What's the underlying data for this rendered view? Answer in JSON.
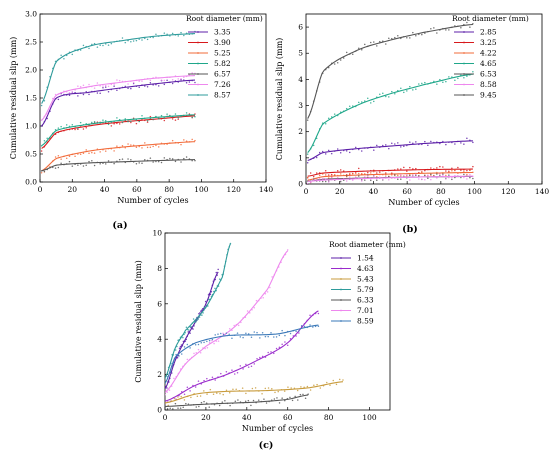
{
  "chart_data": [
    {
      "panel_id": "a",
      "type": "scatter",
      "panel_label": "(a)",
      "xlabel": "Number of cycles",
      "ylabel": "Cumulative residual slip (mm)",
      "xlim": [
        0,
        140
      ],
      "ylim": [
        0,
        3.0
      ],
      "xticks": [
        0,
        20,
        40,
        60,
        80,
        100,
        120,
        140
      ],
      "yticks": [
        0.0,
        0.5,
        1.0,
        1.5,
        2.0,
        2.5,
        3.0
      ],
      "ytick_labels": [
        "0.0",
        "0.5",
        "1.0",
        "1.5",
        "2.0",
        "2.5",
        "3.0"
      ],
      "legend_title": "Root diameter (mm)",
      "legend_position": "top-right",
      "series": [
        {
          "name": "3.35",
          "color": "#5c1fa8",
          "x": [
            1,
            10,
            30,
            50,
            70,
            96
          ],
          "y": [
            1.0,
            1.5,
            1.6,
            1.68,
            1.75,
            1.82
          ]
        },
        {
          "name": "3.90",
          "color": "#d7191c",
          "x": [
            1,
            10,
            30,
            50,
            70,
            96
          ],
          "y": [
            0.6,
            0.88,
            1.0,
            1.07,
            1.12,
            1.18
          ]
        },
        {
          "name": "5.25",
          "color": "#f26b3a",
          "x": [
            1,
            10,
            30,
            50,
            70,
            96
          ],
          "y": [
            0.2,
            0.42,
            0.55,
            0.62,
            0.67,
            0.72
          ]
        },
        {
          "name": "5.82",
          "color": "#1fa78a",
          "x": [
            1,
            10,
            30,
            50,
            70,
            96
          ],
          "y": [
            0.65,
            0.92,
            1.03,
            1.1,
            1.15,
            1.2
          ]
        },
        {
          "name": "6.57",
          "color": "#555555",
          "x": [
            1,
            10,
            30,
            50,
            70,
            96
          ],
          "y": [
            0.2,
            0.3,
            0.34,
            0.36,
            0.38,
            0.4
          ]
        },
        {
          "name": "7.26",
          "color": "#ee88ee",
          "x": [
            1,
            10,
            30,
            50,
            70,
            96
          ],
          "y": [
            1.1,
            1.55,
            1.7,
            1.78,
            1.85,
            1.9
          ]
        },
        {
          "name": "8.57",
          "color": "#2e9b9b",
          "x": [
            1,
            10,
            30,
            50,
            70,
            96
          ],
          "y": [
            1.4,
            2.15,
            2.42,
            2.52,
            2.6,
            2.65
          ]
        }
      ]
    },
    {
      "panel_id": "b",
      "type": "scatter",
      "panel_label": "(b)",
      "xlabel": "Number of cycles",
      "ylabel": "Cumulative residual slip (mm)",
      "xlim": [
        0,
        140
      ],
      "ylim": [
        0,
        6.5
      ],
      "xticks": [
        0,
        20,
        40,
        60,
        80,
        100,
        120,
        140
      ],
      "yticks": [
        0,
        1,
        2,
        3,
        4,
        5,
        6
      ],
      "ytick_labels": [
        "0",
        "1",
        "2",
        "3",
        "4",
        "5",
        "6"
      ],
      "legend_title": "Root diameter (mm)",
      "legend_position": "top-right",
      "series": [
        {
          "name": "2.85",
          "color": "#5c1fa8",
          "x": [
            1,
            10,
            30,
            50,
            70,
            99
          ],
          "y": [
            0.9,
            1.2,
            1.35,
            1.45,
            1.55,
            1.65
          ]
        },
        {
          "name": "3.25",
          "color": "#d7191c",
          "x": [
            1,
            10,
            30,
            50,
            70,
            99
          ],
          "y": [
            0.3,
            0.42,
            0.48,
            0.52,
            0.55,
            0.57
          ]
        },
        {
          "name": "4.22",
          "color": "#f26b3a",
          "x": [
            1,
            10,
            30,
            50,
            70,
            99
          ],
          "y": [
            0.15,
            0.28,
            0.34,
            0.38,
            0.41,
            0.44
          ]
        },
        {
          "name": "4.65",
          "color": "#1fa78a",
          "x": [
            1,
            10,
            30,
            50,
            70,
            99
          ],
          "y": [
            1.2,
            2.3,
            3.0,
            3.45,
            3.8,
            4.2
          ]
        },
        {
          "name": "6.53",
          "color": "#555555",
          "x": [
            1,
            10,
            30,
            50,
            70,
            99
          ],
          "y": [
            0.1,
            0.18,
            0.22,
            0.25,
            0.27,
            0.29
          ]
        },
        {
          "name": "8.58",
          "color": "#ee88ee",
          "x": [
            1,
            10,
            30,
            50,
            70,
            99
          ],
          "y": [
            0.1,
            0.15,
            0.2,
            0.24,
            0.27,
            0.3
          ]
        },
        {
          "name": "9.45",
          "color": "#555555",
          "x": [
            1,
            10,
            30,
            50,
            70,
            99
          ],
          "y": [
            2.5,
            4.3,
            5.1,
            5.5,
            5.8,
            6.1
          ]
        }
      ]
    },
    {
      "panel_id": "c",
      "type": "scatter",
      "panel_label": "(c)",
      "xlabel": "Number of cycles",
      "ylabel": "Cumulative residual slip (mm)",
      "xlim": [
        0,
        110
      ],
      "ylim": [
        0,
        10
      ],
      "xticks": [
        0,
        20,
        40,
        60,
        80,
        100
      ],
      "yticks": [
        0,
        2,
        4,
        6,
        8,
        10
      ],
      "ytick_labels": [
        "0",
        "2",
        "4",
        "6",
        "8",
        "10"
      ],
      "legend_title": "Root diameter (mm)",
      "legend_position": "top-right",
      "series": [
        {
          "name": "1.54",
          "color": "#5c1fa8",
          "x": [
            0,
            5,
            10,
            15,
            20,
            26
          ],
          "y": [
            1.2,
            2.8,
            4.0,
            5.0,
            6.0,
            7.8
          ]
        },
        {
          "name": "4.63",
          "color": "#9a2bcc",
          "x": [
            0,
            15,
            30,
            45,
            60,
            75
          ],
          "y": [
            0.5,
            1.4,
            2.0,
            2.8,
            3.8,
            5.6
          ]
        },
        {
          "name": "5.43",
          "color": "#c89b3c",
          "x": [
            0,
            15,
            30,
            50,
            70,
            87
          ],
          "y": [
            0.4,
            0.9,
            1.05,
            1.1,
            1.25,
            1.6
          ]
        },
        {
          "name": "5.79",
          "color": "#2e9b9b",
          "x": [
            0,
            5,
            10,
            20,
            28,
            32
          ],
          "y": [
            1.8,
            3.5,
            4.5,
            5.8,
            7.5,
            9.4
          ]
        },
        {
          "name": "6.33",
          "color": "#555555",
          "x": [
            0,
            15,
            30,
            45,
            60,
            70
          ],
          "y": [
            0.2,
            0.3,
            0.38,
            0.45,
            0.6,
            0.85
          ]
        },
        {
          "name": "7.01",
          "color": "#ee88ee",
          "x": [
            0,
            10,
            20,
            35,
            50,
            60
          ],
          "y": [
            1.0,
            2.6,
            3.6,
            4.8,
            6.8,
            9.0
          ]
        },
        {
          "name": "8.59",
          "color": "#3a78b8",
          "x": [
            0,
            5,
            15,
            30,
            55,
            75
          ],
          "y": [
            1.5,
            3.0,
            3.8,
            4.2,
            4.3,
            4.8
          ]
        }
      ]
    }
  ]
}
